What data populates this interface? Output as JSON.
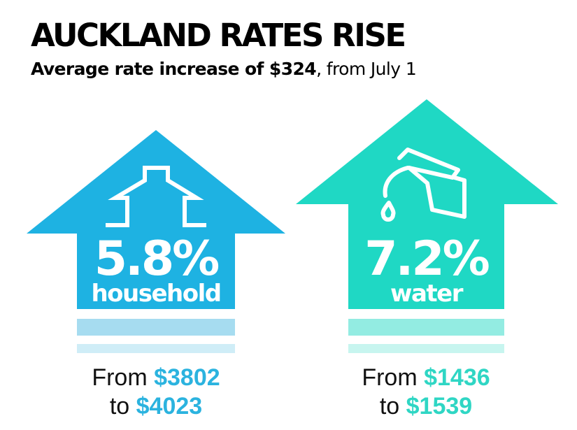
{
  "title": "AUCKLAND RATES RISE",
  "subtitle": {
    "strong": "Average rate increase of $324",
    "rest": ", from July 1"
  },
  "colors": {
    "household": "#1eb2e2",
    "household_band1": "#a6dcf0",
    "household_band2": "#cfedf7",
    "water": "#1fd8c4",
    "water_band1": "#93ece2",
    "water_band2": "#c7f5ef",
    "household_amount": "#2bb3df",
    "water_amount": "#2fd6c4"
  },
  "household": {
    "icon": "house-icon",
    "percent": "5.8%",
    "label": "household",
    "from_word": "From",
    "from_value": "$3802",
    "to_word": "to",
    "to_value": "$4023"
  },
  "water": {
    "icon": "tap-icon",
    "percent": "7.2%",
    "label": "water",
    "from_word": "From",
    "from_value": "$1436",
    "to_word": "to",
    "to_value": "$1539"
  }
}
